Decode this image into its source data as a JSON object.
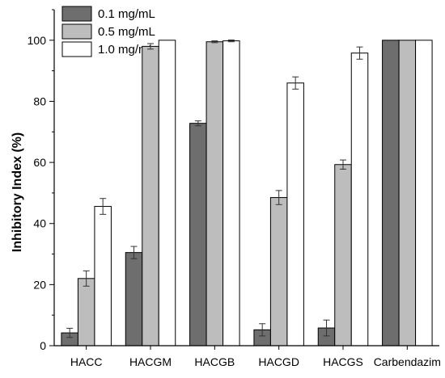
{
  "chart_data": {
    "type": "bar",
    "ylabel": "Inhibitory Index (%)",
    "xlabel": "",
    "ylim": [
      0,
      110
    ],
    "yticks": [
      0,
      20,
      40,
      60,
      80,
      100
    ],
    "categories": [
      "HACC",
      "HACGM",
      "HACGB",
      "HACGD",
      "HACGS",
      "Carbendazim"
    ],
    "series": [
      {
        "name": "0.1 mg/mL",
        "color": "#6e6e6e",
        "values": [
          4.2,
          30.5,
          72.8,
          5.2,
          5.8,
          100
        ],
        "errors": [
          1.5,
          2.0,
          0.8,
          2.0,
          2.6,
          0
        ]
      },
      {
        "name": "0.5 mg/mL",
        "color": "#bdbdbd",
        "values": [
          22.0,
          98.0,
          99.5,
          48.5,
          59.3,
          100
        ],
        "errors": [
          2.5,
          0.9,
          0.3,
          2.3,
          1.5,
          0
        ]
      },
      {
        "name": "1.0 mg/mL",
        "color": "#ffffff",
        "values": [
          45.6,
          100,
          99.8,
          86.0,
          95.8,
          100
        ],
        "errors": [
          2.6,
          0,
          0.3,
          2.0,
          2.0,
          0
        ]
      }
    ],
    "legend_position": "top-left"
  }
}
